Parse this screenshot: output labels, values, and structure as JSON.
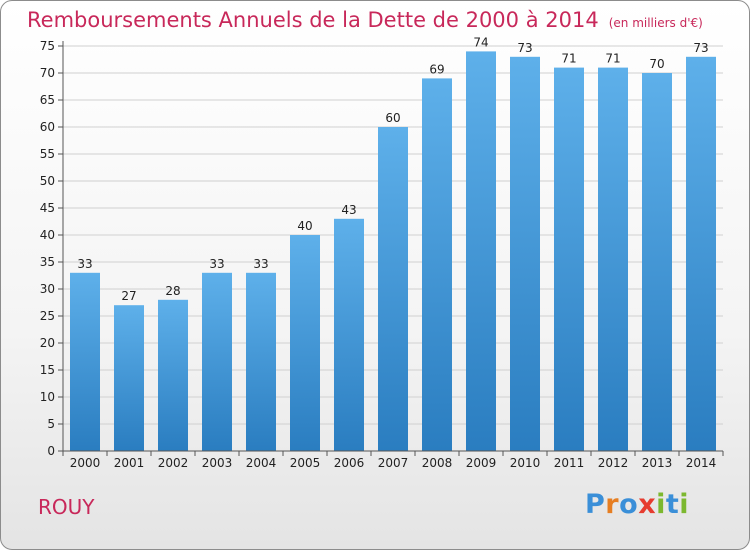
{
  "title": "Remboursements Annuels de la Dette de 2000 à 2014",
  "subtitle": "(en milliers d'€)",
  "city": "ROUY",
  "logo": {
    "text": "Proxiti",
    "letters": [
      "P",
      "r",
      "o",
      "x",
      "i",
      "t",
      "i"
    ],
    "colors": [
      "#3a8fd8",
      "#e67e22",
      "#3a8fd8",
      "#e63c2f",
      "#7cb82f",
      "#3a8fd8",
      "#7cb82f"
    ]
  },
  "colors": {
    "bar_light": "#5eb0ea",
    "bar_dark": "#2a7dc0",
    "title": "#c8285a",
    "axis": "#555555"
  },
  "chart_data": {
    "type": "bar",
    "title": "Remboursements Annuels de la Dette de 2000 à 2014",
    "subtitle": "(en milliers d'€)",
    "xlabel": "",
    "ylabel": "",
    "ylim": [
      0,
      75
    ],
    "yticks": [
      0,
      5,
      10,
      15,
      20,
      25,
      30,
      35,
      40,
      45,
      50,
      55,
      60,
      65,
      70,
      75
    ],
    "grid": true,
    "categories": [
      "2000",
      "2001",
      "2002",
      "2003",
      "2004",
      "2005",
      "2006",
      "2007",
      "2008",
      "2009",
      "2010",
      "2011",
      "2012",
      "2013",
      "2014"
    ],
    "values": [
      33,
      27,
      28,
      33,
      33,
      40,
      43,
      60,
      69,
      74,
      73,
      71,
      71,
      70,
      73
    ]
  }
}
